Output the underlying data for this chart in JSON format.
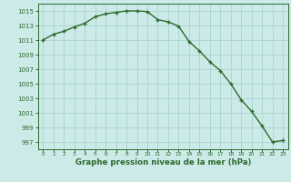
{
  "x": [
    0,
    1,
    2,
    3,
    4,
    5,
    6,
    7,
    8,
    9,
    10,
    11,
    12,
    13,
    14,
    15,
    16,
    17,
    18,
    19,
    20,
    21,
    22,
    23
  ],
  "y": [
    1011.0,
    1011.8,
    1012.2,
    1012.8,
    1013.3,
    1014.2,
    1014.6,
    1014.8,
    1015.0,
    1015.0,
    1014.9,
    1013.8,
    1013.5,
    1012.9,
    1010.8,
    1009.5,
    1008.0,
    1006.8,
    1005.0,
    1002.8,
    1001.2,
    999.2,
    997.0,
    997.2
  ],
  "ylim": [
    996.0,
    1016.0
  ],
  "yticks": [
    997,
    999,
    1001,
    1003,
    1005,
    1007,
    1009,
    1011,
    1013,
    1015
  ],
  "xticks": [
    0,
    1,
    2,
    3,
    4,
    5,
    6,
    7,
    8,
    9,
    10,
    11,
    12,
    13,
    14,
    15,
    16,
    17,
    18,
    19,
    20,
    21,
    22,
    23
  ],
  "xlabel": "Graphe pression niveau de la mer (hPa)",
  "line_color": "#2d6a2d",
  "marker_color": "#2d6a2d",
  "bg_color": "#cceae7",
  "grid_color": "#aad4d0",
  "tick_label_color": "#2d6a2d",
  "xlabel_color": "#2d6a2d",
  "marker": "+",
  "linewidth": 1.0,
  "markersize": 3.5,
  "markeredgewidth": 1.0,
  "ytick_fontsize": 5.0,
  "xtick_fontsize": 4.2,
  "xlabel_fontsize": 6.2
}
